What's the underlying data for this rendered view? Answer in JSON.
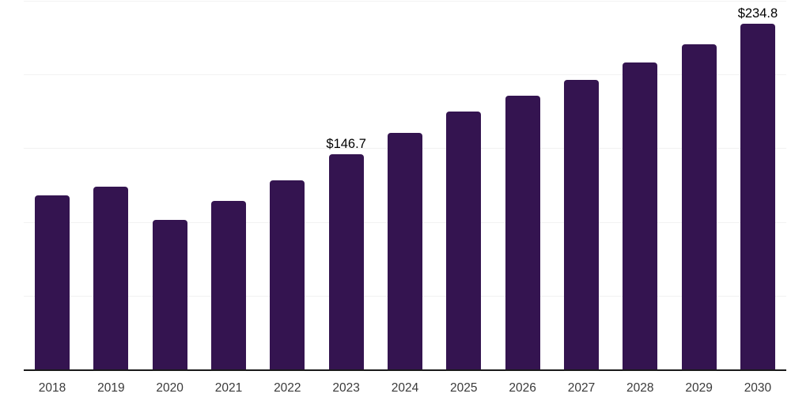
{
  "chart": {
    "background_color": "#ffffff",
    "bar_color": "#341450",
    "axis_line_color": "#1a1a1a",
    "gridline_color": "#f2f2f2",
    "data_label_color": "#000000",
    "tick_label_color": "#3a3a3a"
  },
  "chart_data": {
    "type": "bar",
    "title": "",
    "xlabel": "",
    "ylabel": "",
    "categories": [
      "2018",
      "2019",
      "2020",
      "2021",
      "2022",
      "2023",
      "2024",
      "2025",
      "2026",
      "2027",
      "2028",
      "2029",
      "2030"
    ],
    "values": [
      118.6,
      124.6,
      101.7,
      114.6,
      128.5,
      146.7,
      160.7,
      175.7,
      186.2,
      197.0,
      208.6,
      221.3,
      234.8
    ],
    "labeled_points": [
      {
        "category": "2023",
        "label": "$146.7"
      },
      {
        "category": "2030",
        "label": "$234.8"
      }
    ],
    "currency_prefix": "$",
    "ylim": [
      0,
      250
    ],
    "gridline_values": [
      50,
      100,
      150,
      200,
      250
    ],
    "grid": "horizontal-only",
    "legend": "none",
    "y_axis_ticks_visible": false
  }
}
